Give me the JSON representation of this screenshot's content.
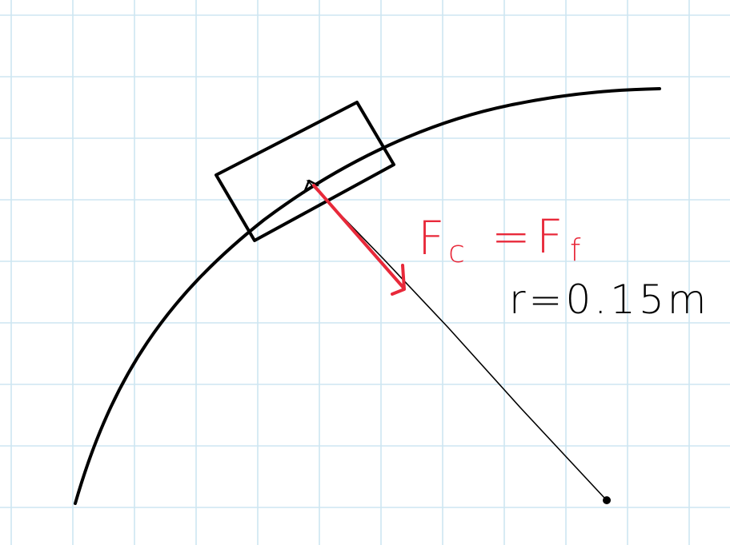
{
  "colors": {
    "background": "#ffffff",
    "grid": "#cde6f2",
    "ink": "#000000",
    "force": "#e8293a"
  },
  "labels": {
    "force_main": "F",
    "force_c_sub": "c",
    "equals": "=",
    "force_f_sub": "f",
    "radius": "r=0.15m"
  }
}
